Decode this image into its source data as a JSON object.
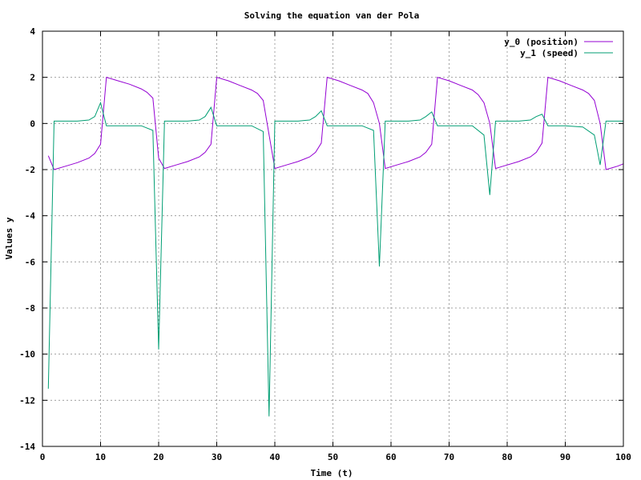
{
  "chart_data": {
    "type": "line",
    "title": "Solving the equation van der Pola",
    "xlabel": "Time (t)",
    "ylabel": "Values y",
    "xlim": [
      0,
      100
    ],
    "ylim": [
      -14,
      4
    ],
    "xticks": [
      "0",
      "10",
      "20",
      "30",
      "40",
      "50",
      "60",
      "70",
      "80",
      "90",
      "100"
    ],
    "yticks": [
      "4",
      "2",
      "0",
      "-2",
      "-4",
      "-6",
      "-8",
      "-10",
      "-12",
      "-14"
    ],
    "grid": true,
    "legend_position": "top-right",
    "series": [
      {
        "name": "y_0 (position)",
        "color": "#9400d3",
        "points": [
          [
            1,
            -1.4
          ],
          [
            2,
            -2.0
          ],
          [
            4,
            -1.85
          ],
          [
            6,
            -1.7
          ],
          [
            8,
            -1.5
          ],
          [
            9,
            -1.3
          ],
          [
            10,
            -0.9
          ],
          [
            11,
            2.0
          ],
          [
            13,
            1.85
          ],
          [
            15,
            1.7
          ],
          [
            17,
            1.5
          ],
          [
            18,
            1.35
          ],
          [
            19,
            1.1
          ],
          [
            20,
            -1.5
          ],
          [
            21,
            -1.95
          ],
          [
            23,
            -1.8
          ],
          [
            25,
            -1.65
          ],
          [
            27,
            -1.45
          ],
          [
            28,
            -1.25
          ],
          [
            29,
            -0.9
          ],
          [
            30,
            2.0
          ],
          [
            32,
            1.85
          ],
          [
            34,
            1.65
          ],
          [
            36,
            1.45
          ],
          [
            37,
            1.3
          ],
          [
            38,
            1.0
          ],
          [
            40,
            -1.95
          ],
          [
            42,
            -1.8
          ],
          [
            44,
            -1.65
          ],
          [
            46,
            -1.45
          ],
          [
            47,
            -1.25
          ],
          [
            48,
            -0.85
          ],
          [
            49,
            2.0
          ],
          [
            51,
            1.85
          ],
          [
            53,
            1.65
          ],
          [
            55,
            1.45
          ],
          [
            56,
            1.3
          ],
          [
            57,
            0.9
          ],
          [
            58,
            0.0
          ],
          [
            59,
            -1.95
          ],
          [
            61,
            -1.8
          ],
          [
            63,
            -1.65
          ],
          [
            65,
            -1.45
          ],
          [
            66,
            -1.25
          ],
          [
            67,
            -0.9
          ],
          [
            68,
            2.0
          ],
          [
            70,
            1.85
          ],
          [
            72,
            1.65
          ],
          [
            74,
            1.45
          ],
          [
            75,
            1.25
          ],
          [
            76,
            0.9
          ],
          [
            77,
            0.0
          ],
          [
            78,
            -1.95
          ],
          [
            80,
            -1.8
          ],
          [
            82,
            -1.65
          ],
          [
            84,
            -1.45
          ],
          [
            85,
            -1.25
          ],
          [
            86,
            -0.85
          ],
          [
            87,
            2.0
          ],
          [
            89,
            1.85
          ],
          [
            91,
            1.65
          ],
          [
            93,
            1.45
          ],
          [
            94,
            1.3
          ],
          [
            95,
            1.0
          ],
          [
            96,
            0.0
          ],
          [
            97,
            -2.0
          ],
          [
            99,
            -1.85
          ],
          [
            100,
            -1.75
          ]
        ]
      },
      {
        "name": "y_1 (speed)",
        "color": "#009e73",
        "points": [
          [
            1,
            -11.5
          ],
          [
            2,
            0.1
          ],
          [
            4,
            0.1
          ],
          [
            6,
            0.1
          ],
          [
            8,
            0.15
          ],
          [
            9,
            0.3
          ],
          [
            10,
            0.9
          ],
          [
            11,
            -0.1
          ],
          [
            14,
            -0.1
          ],
          [
            17,
            -0.1
          ],
          [
            19,
            -0.3
          ],
          [
            20,
            -9.8
          ],
          [
            21,
            0.1
          ],
          [
            23,
            0.1
          ],
          [
            25,
            0.1
          ],
          [
            27,
            0.15
          ],
          [
            28,
            0.3
          ],
          [
            29,
            0.7
          ],
          [
            30,
            -0.1
          ],
          [
            33,
            -0.1
          ],
          [
            36,
            -0.1
          ],
          [
            38,
            -0.35
          ],
          [
            39,
            -12.7
          ],
          [
            40,
            0.1
          ],
          [
            42,
            0.1
          ],
          [
            44,
            0.1
          ],
          [
            46,
            0.15
          ],
          [
            47,
            0.3
          ],
          [
            48,
            0.55
          ],
          [
            49,
            -0.1
          ],
          [
            52,
            -0.1
          ],
          [
            55,
            -0.1
          ],
          [
            57,
            -0.3
          ],
          [
            58,
            -6.2
          ],
          [
            59,
            0.1
          ],
          [
            61,
            0.1
          ],
          [
            63,
            0.1
          ],
          [
            65,
            0.15
          ],
          [
            66,
            0.3
          ],
          [
            67,
            0.5
          ],
          [
            68,
            -0.1
          ],
          [
            71,
            -0.1
          ],
          [
            74,
            -0.1
          ],
          [
            76,
            -0.5
          ],
          [
            77,
            -3.1
          ],
          [
            78,
            0.1
          ],
          [
            80,
            0.1
          ],
          [
            82,
            0.1
          ],
          [
            84,
            0.15
          ],
          [
            85,
            0.3
          ],
          [
            86,
            0.4
          ],
          [
            87,
            -0.1
          ],
          [
            90,
            -0.1
          ],
          [
            93,
            -0.15
          ],
          [
            95,
            -0.5
          ],
          [
            96,
            -1.8
          ],
          [
            97,
            0.1
          ],
          [
            99,
            0.1
          ],
          [
            100,
            0.1
          ]
        ]
      }
    ]
  }
}
